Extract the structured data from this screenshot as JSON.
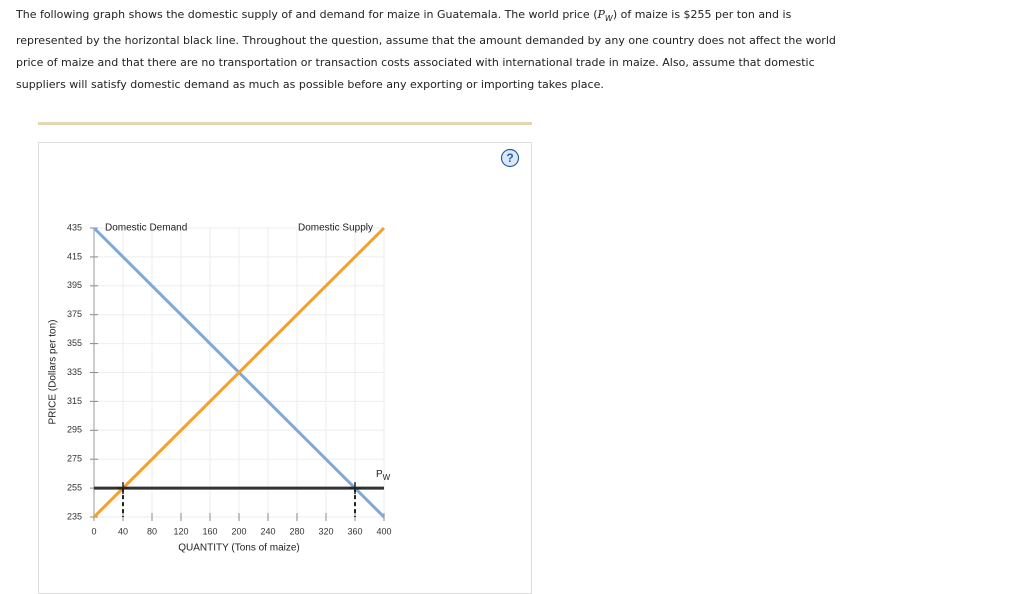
{
  "question": {
    "text_before": "The following graph shows the domestic supply of and demand for maize in Guatemala. The world price (",
    "symbol": "P",
    "symbol_sub": "W",
    "text_after": ") of maize is $255 per ton and is represented by the horizontal black line. Throughout the question, assume that the amount demanded by any one country does not affect the world price of maize and that there are no transportation or transaction costs associated with international trade in maize. Also, assume that domestic suppliers will satisfy domestic demand as much as possible before any exporting or importing takes place."
  },
  "help_icon": "?",
  "chart_data": {
    "type": "line",
    "x_label": "QUANTITY (Tons of maize)",
    "y_label": "PRICE (Dollars per ton)",
    "x": [
      0,
      400
    ],
    "series": [
      {
        "name": "Domestic Demand",
        "color": "#7fa9d6",
        "values": [
          435,
          235
        ]
      },
      {
        "name": "Domestic Supply",
        "color": "#f5a02a",
        "values": [
          235,
          435
        ]
      },
      {
        "name": "P",
        "name_sub": "W",
        "color": "#333333",
        "values": [
          255,
          255
        ]
      }
    ],
    "markers": {
      "x": [
        40,
        360
      ],
      "values": [
        255,
        255
      ]
    },
    "xlim": [
      0,
      400
    ],
    "xticks": [
      0,
      40,
      80,
      120,
      160,
      200,
      240,
      280,
      320,
      360,
      400
    ],
    "ylim": [
      235,
      435
    ],
    "yticks": [
      235,
      255,
      275,
      295,
      315,
      335,
      355,
      375,
      395,
      415,
      435
    ],
    "grid": true
  }
}
